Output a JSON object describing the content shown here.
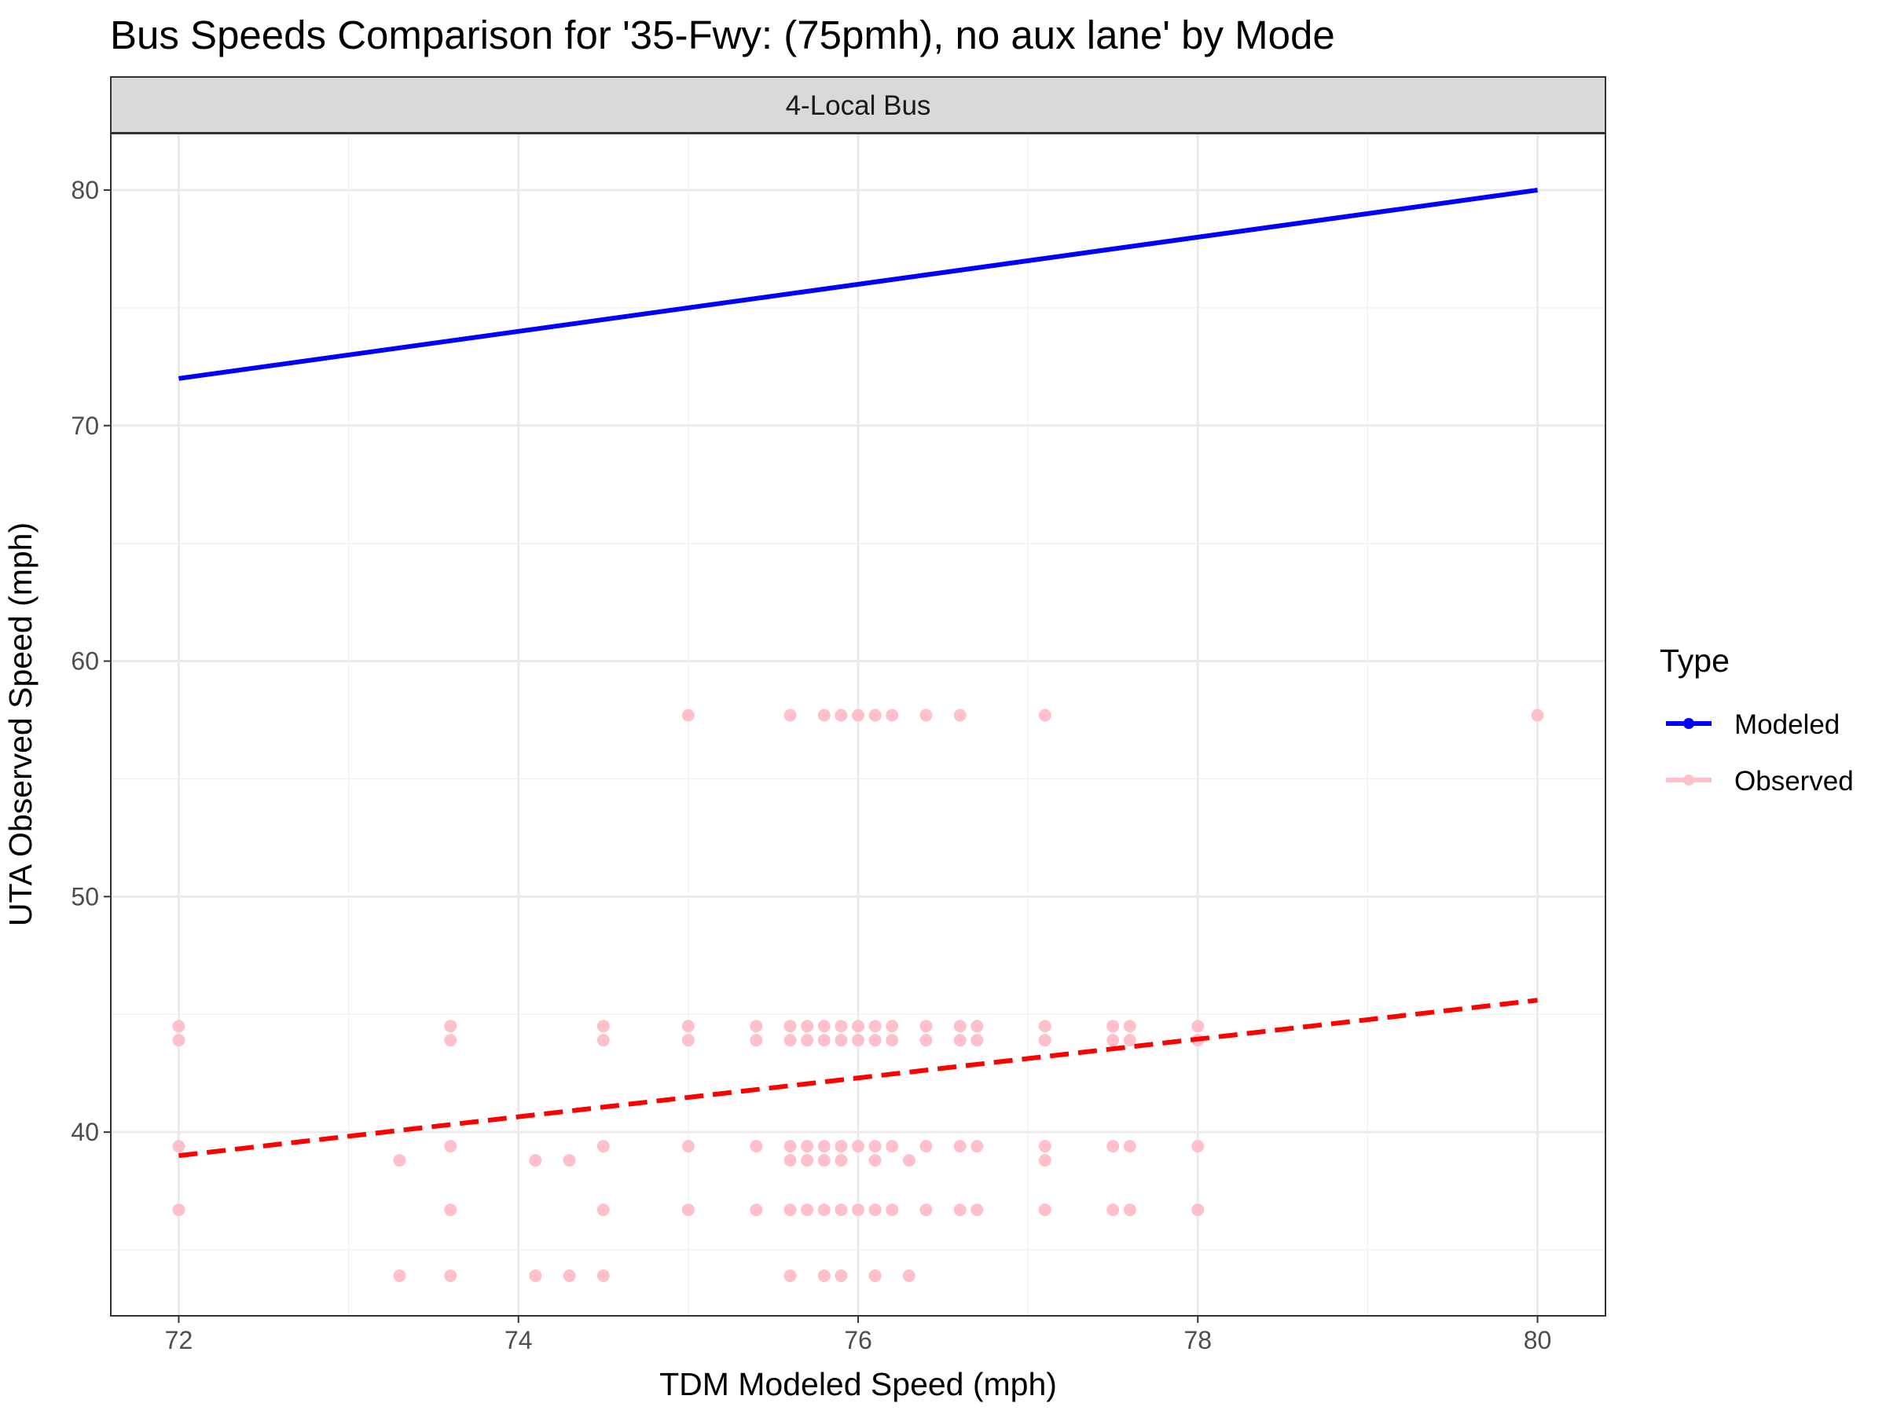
{
  "chart_data": {
    "type": "scatter",
    "title": "Bus Speeds Comparison for '35-Fwy: (75pmh), no aux lane' by Mode",
    "facet_label": "4-Local Bus",
    "xlabel": "TDM Modeled Speed (mph)",
    "ylabel": "UTA Observed Speed (mph)",
    "xlim": [
      71.6,
      80.4
    ],
    "ylim": [
      32.2,
      82.4
    ],
    "x_ticks": [
      72,
      74,
      76,
      78,
      80
    ],
    "x_tick_labels": [
      "72",
      "74",
      "76",
      "78",
      "80"
    ],
    "y_ticks": [
      40,
      50,
      60,
      70,
      80
    ],
    "y_tick_labels": [
      "40",
      "50",
      "60",
      "70",
      "80"
    ],
    "grid": true,
    "legend": {
      "title": "Type",
      "position": "right",
      "entries": [
        {
          "label": "Modeled",
          "color": "#0000ff"
        },
        {
          "label": "Observed",
          "color": "#ffc0cb"
        }
      ]
    },
    "series": [
      {
        "name": "Observed",
        "kind": "points",
        "color": "#ffc0cb",
        "points": [
          [
            72,
            44.5
          ],
          [
            72,
            43.9
          ],
          [
            72,
            39.4
          ],
          [
            72,
            36.7
          ],
          [
            73.3,
            38.8
          ],
          [
            73.3,
            33.9
          ],
          [
            73.6,
            44.5
          ],
          [
            73.6,
            43.9
          ],
          [
            73.6,
            39.4
          ],
          [
            73.6,
            36.7
          ],
          [
            73.6,
            33.9
          ],
          [
            74.1,
            38.8
          ],
          [
            74.1,
            33.9
          ],
          [
            74.3,
            38.8
          ],
          [
            74.3,
            33.9
          ],
          [
            74.5,
            44.5
          ],
          [
            74.5,
            43.9
          ],
          [
            74.5,
            39.4
          ],
          [
            74.5,
            36.7
          ],
          [
            74.5,
            33.9
          ],
          [
            75,
            57.7
          ],
          [
            75,
            44.5
          ],
          [
            75,
            43.9
          ],
          [
            75,
            39.4
          ],
          [
            75,
            36.7
          ],
          [
            75.4,
            44.5
          ],
          [
            75.4,
            43.9
          ],
          [
            75.4,
            39.4
          ],
          [
            75.4,
            36.7
          ],
          [
            75.6,
            57.7
          ],
          [
            75.6,
            44.5
          ],
          [
            75.6,
            43.9
          ],
          [
            75.6,
            39.4
          ],
          [
            75.6,
            38.8
          ],
          [
            75.6,
            36.7
          ],
          [
            75.6,
            33.9
          ],
          [
            75.7,
            44.5
          ],
          [
            75.7,
            43.9
          ],
          [
            75.7,
            39.4
          ],
          [
            75.7,
            38.8
          ],
          [
            75.7,
            36.7
          ],
          [
            75.8,
            57.7
          ],
          [
            75.8,
            44.5
          ],
          [
            75.8,
            43.9
          ],
          [
            75.8,
            39.4
          ],
          [
            75.8,
            38.8
          ],
          [
            75.8,
            36.7
          ],
          [
            75.8,
            33.9
          ],
          [
            75.9,
            57.7
          ],
          [
            75.9,
            44.5
          ],
          [
            75.9,
            43.9
          ],
          [
            75.9,
            39.4
          ],
          [
            75.9,
            38.8
          ],
          [
            75.9,
            36.7
          ],
          [
            75.9,
            33.9
          ],
          [
            76,
            57.7
          ],
          [
            76,
            44.5
          ],
          [
            76,
            43.9
          ],
          [
            76,
            39.4
          ],
          [
            76,
            36.7
          ],
          [
            76.1,
            57.7
          ],
          [
            76.1,
            44.5
          ],
          [
            76.1,
            43.9
          ],
          [
            76.1,
            39.4
          ],
          [
            76.1,
            38.8
          ],
          [
            76.1,
            36.7
          ],
          [
            76.1,
            33.9
          ],
          [
            76.2,
            57.7
          ],
          [
            76.2,
            44.5
          ],
          [
            76.2,
            43.9
          ],
          [
            76.2,
            39.4
          ],
          [
            76.2,
            36.7
          ],
          [
            76.3,
            38.8
          ],
          [
            76.3,
            33.9
          ],
          [
            76.4,
            57.7
          ],
          [
            76.4,
            44.5
          ],
          [
            76.4,
            43.9
          ],
          [
            76.4,
            39.4
          ],
          [
            76.4,
            36.7
          ],
          [
            76.6,
            57.7
          ],
          [
            76.6,
            44.5
          ],
          [
            76.6,
            43.9
          ],
          [
            76.6,
            39.4
          ],
          [
            76.6,
            36.7
          ],
          [
            76.7,
            44.5
          ],
          [
            76.7,
            43.9
          ],
          [
            76.7,
            39.4
          ],
          [
            76.7,
            36.7
          ],
          [
            77.1,
            57.7
          ],
          [
            77.1,
            44.5
          ],
          [
            77.1,
            43.9
          ],
          [
            77.1,
            39.4
          ],
          [
            77.1,
            38.8
          ],
          [
            77.1,
            36.7
          ],
          [
            77.5,
            44.5
          ],
          [
            77.5,
            43.9
          ],
          [
            77.5,
            39.4
          ],
          [
            77.5,
            36.7
          ],
          [
            77.6,
            44.5
          ],
          [
            77.6,
            43.9
          ],
          [
            77.6,
            39.4
          ],
          [
            77.6,
            36.7
          ],
          [
            78,
            44.5
          ],
          [
            78,
            43.9
          ],
          [
            78,
            39.4
          ],
          [
            78,
            36.7
          ],
          [
            80,
            57.7
          ]
        ]
      },
      {
        "name": "Modeled",
        "kind": "line",
        "color": "#0000ff",
        "dash": "solid",
        "x": [
          72,
          80
        ],
        "y": [
          72,
          80
        ]
      },
      {
        "name": "Observed",
        "kind": "line",
        "color": "#ff0000",
        "dash": "dashed",
        "x": [
          72,
          80
        ],
        "y": [
          39.0,
          45.6
        ]
      }
    ]
  }
}
